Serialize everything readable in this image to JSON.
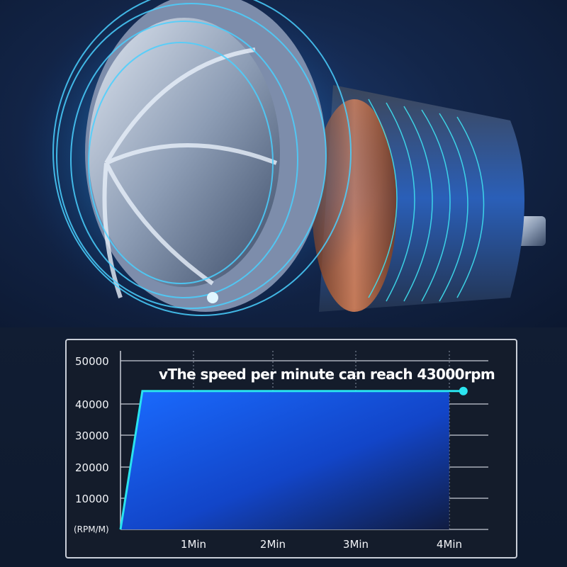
{
  "colors": {
    "background": "#0f1c33",
    "area_fill": "#1560f0",
    "line": "#29e3ee",
    "marker": "#2be4f0",
    "grid": "#c8ccd6"
  },
  "illustration": {
    "subject": "motor with fan impeller and copper windings",
    "glow_color": "#2aa8ff"
  },
  "chart_data": {
    "type": "area",
    "title": "vThe speed per minute can reach 43000rpm",
    "xlabel": "",
    "ylabel": "(RPM/M)",
    "x_unit": "min",
    "x": [
      0,
      0.3,
      4.15
    ],
    "values": [
      0,
      43000,
      43000
    ],
    "x_ticks": [
      "1Min",
      "2Min",
      "3Min",
      "4Min"
    ],
    "x_tick_values": [
      1,
      2,
      3,
      4
    ],
    "y_ticks": [
      "50000",
      "40000",
      "30000",
      "20000",
      "10000"
    ],
    "y_tick_values": [
      50000,
      40000,
      30000,
      20000,
      10000
    ],
    "ylim": [
      0,
      50000
    ],
    "grid": true,
    "end_marker": true
  }
}
